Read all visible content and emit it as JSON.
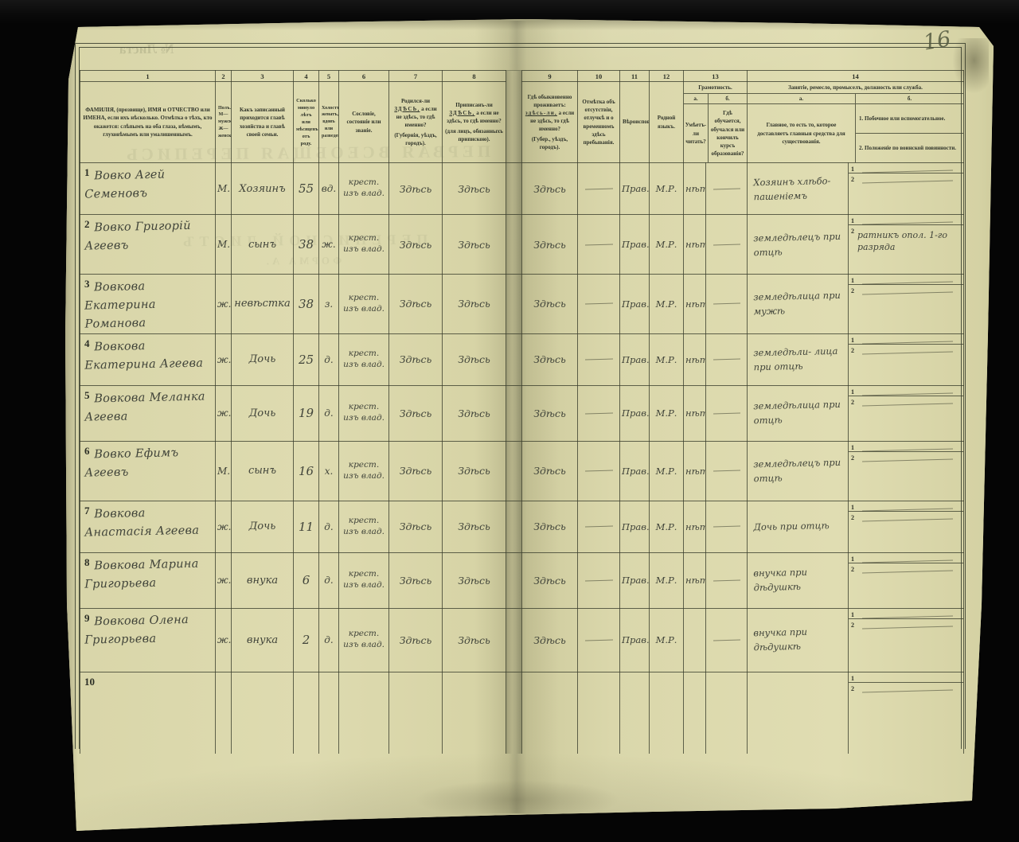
{
  "page": {
    "number": "16"
  },
  "colors": {
    "paper": "#d8d5a7",
    "ink": "#41443a",
    "print": "#30342a",
    "background": "#050505",
    "grid_line": "#383c2c"
  },
  "ghost_texts": {
    "sheet_no": "№ Листа",
    "title": "ПЕРВАЯ ВСЕОБЩАЯ ПЕРЕПИСЬ",
    "subtitle": "ПЕРЕПИСНОЙ ЛИСТЪ",
    "form": "ФОРМА А."
  },
  "table": {
    "column_numbers": [
      "1",
      "2",
      "3",
      "4",
      "5",
      "6",
      "7",
      "8",
      "9",
      "10",
      "11",
      "12",
      "13",
      "14"
    ],
    "headers": {
      "col1": "ФАМИЛІЯ, (прозвище), ИМЯ и ОТЧЕСТВО или ИМЕНА, если ихъ нѣсколько. Отмѣтка о тѣхъ, кто окажется: слѣпымъ на оба глаза, нѣмымъ, глухонѣмымъ или умалишеннымъ.",
      "col2": "Полъ. М—мужской. Ж—женскій.",
      "col3": "Какъ записанный приходится главѣ хозяйства и главѣ своей семьи.",
      "col4": "Сколько минуло лѣтъ или мѣсяцевъ отъ роду.",
      "col5": "Холостъ, женатъ, вдовъ или разведенъ.",
      "col6": "Сословіе, состояніе или званіе.",
      "col7": {
        "pre": "Родился-ли",
        "emph": "ЗДѢСЬ,",
        "post": "а если не здѣсь, то гдѣ именно?",
        "note": "(Губернія, уѣздъ, городъ)."
      },
      "col8": {
        "pre": "Приписанъ-ли",
        "emph": "ЗДѢСЬ,",
        "post": "а если не здѣсь, то гдѣ именно?",
        "note": "(для лицъ, обязанныхъ припискою)."
      },
      "col9": {
        "pre": "Гдѣ обыкновенно проживаетъ:",
        "emph": "здѣсь-ли,",
        "post": "а если не здѣсь, то гдѣ именно?",
        "note": "(Губер., уѣздъ, городъ)."
      },
      "col10": "Отмѣтка объ отсутствіи, отлучкѣ и о временномъ здѣсь пребыванія.",
      "col11": "Вѣроисповѣданіе.",
      "col12": "Родной языкъ.",
      "col13": {
        "title": "Грамотность.",
        "a_label": "а.",
        "b_label": "б.",
        "a": "Умѣетъ-ли читать?",
        "b": "Гдѣ обучается, обучался или кончилъ курсъ образованія?"
      },
      "col14": {
        "title": "Занятіе, ремесло, промыселъ, должность или служба.",
        "a_label": "а.",
        "b_label": "б.",
        "a": "Главное, то есть то, которое доставляетъ главныя средства для существованія.",
        "b1": "1. Побочное или вспомогательное.",
        "b2": "2. Положеніе по воинской повинности."
      }
    },
    "side_labels": [
      "1",
      "2"
    ],
    "rows": [
      {
        "num": "1",
        "name": "Вовко Агей Семеновъ",
        "sex": "М.",
        "relation": "Хозяинъ",
        "age": "55",
        "marital": "вд.",
        "estate": "крест. изъ влад.",
        "born": "Здѣсь",
        "registered": "Здѣсь",
        "lives": "Здѣсь",
        "absence": "—",
        "religion": "Прав.",
        "language": "М.Р.",
        "read": "нѣтъ",
        "edu": "—",
        "occupation": "Хозяинъ хлѣбо- пашеніемъ",
        "side1": "—",
        "side2": "—"
      },
      {
        "num": "2",
        "name": "Вовко Григорій Агеевъ",
        "sex": "М.",
        "relation": "сынъ",
        "age": "38",
        "marital": "ж.",
        "estate": "крест. изъ влад.",
        "born": "Здѣсь",
        "registered": "Здѣсь",
        "lives": "Здѣсь",
        "absence": "—",
        "religion": "Прав.",
        "language": "М.Р.",
        "read": "нѣтъ",
        "edu": "—",
        "occupation": "земледѣлецъ при отцѣ",
        "side1": "—",
        "side2": "ратникъ опол. 1-го разряда"
      },
      {
        "num": "3",
        "name": "Вовкова Екатерина Романова",
        "sex": "ж.",
        "relation": "невѣстка",
        "age": "38",
        "marital": "з.",
        "estate": "крест. изъ влад.",
        "born": "Здѣсь",
        "registered": "Здѣсь",
        "lives": "Здѣсь",
        "absence": "—",
        "religion": "Прав.",
        "language": "М.Р.",
        "read": "нѣтъ",
        "edu": "—",
        "occupation": "земледѣлица при мужѣ",
        "side1": "—",
        "side2": "—"
      },
      {
        "num": "4",
        "name": "Вовкова Екатерина Агеева",
        "sex": "ж.",
        "relation": "Дочь",
        "age": "25",
        "marital": "д.",
        "estate": "крест. изъ влад.",
        "born": "Здѣсь",
        "registered": "Здѣсь",
        "lives": "Здѣсь",
        "absence": "—",
        "religion": "Прав.",
        "language": "М.Р.",
        "read": "нѣтъ",
        "edu": "—",
        "occupation": "земледѣли- лица при отцѣ",
        "side1": "—",
        "side2": "—"
      },
      {
        "num": "5",
        "name": "Вовкова Меланка Агеева",
        "sex": "ж.",
        "relation": "Дочь",
        "age": "19",
        "marital": "д.",
        "estate": "крест. изъ влад.",
        "born": "Здѣсь",
        "registered": "Здѣсь",
        "lives": "Здѣсь",
        "absence": "—",
        "religion": "Прав.",
        "language": "М.Р.",
        "read": "нѣтъ",
        "edu": "—",
        "occupation": "земледѣлица при отцѣ",
        "side1": "—",
        "side2": "—"
      },
      {
        "num": "6",
        "name": "Вовко Ефимъ Агеевъ",
        "sex": "М.",
        "relation": "сынъ",
        "age": "16",
        "marital": "х.",
        "estate": "крест. изъ влад.",
        "born": "Здѣсь",
        "registered": "Здѣсь",
        "lives": "Здѣсь",
        "absence": "—",
        "religion": "Прав.",
        "language": "М.Р.",
        "read": "нѣтъ",
        "edu": "—",
        "occupation": "земледѣлецъ при отцѣ",
        "side1": "—",
        "side2": "—"
      },
      {
        "num": "7",
        "name": "Вовкова Анастасія Агеева",
        "sex": "ж.",
        "relation": "Дочь",
        "age": "11",
        "marital": "д.",
        "estate": "крест. изъ влад.",
        "born": "Здѣсь",
        "registered": "Здѣсь",
        "lives": "Здѣсь",
        "absence": "—",
        "religion": "Прав.",
        "language": "М.Р.",
        "read": "нѣтъ",
        "edu": "—",
        "occupation": "Дочь при отцѣ",
        "side1": "—",
        "side2": "—"
      },
      {
        "num": "8",
        "name": "Вовкова Марина Григорьева",
        "sex": "ж.",
        "relation": "внука",
        "age": "6",
        "marital": "д.",
        "estate": "крест. изъ влад.",
        "born": "Здѣсь",
        "registered": "Здѣсь",
        "lives": "Здѣсь",
        "absence": "—",
        "religion": "Прав.",
        "language": "М.Р.",
        "read": "нѣтъ",
        "edu": "—",
        "occupation": "внучка при дѣдушкѣ",
        "side1": "—",
        "side2": "—"
      },
      {
        "num": "9",
        "name": "Вовкова Олена Григорьева",
        "sex": "ж.",
        "relation": "внука",
        "age": "2",
        "marital": "д.",
        "estate": "крест. изъ влад.",
        "born": "Здѣсь",
        "registered": "Здѣсь",
        "lives": "Здѣсь",
        "absence": "—",
        "religion": "Прав.",
        "language": "М.Р.",
        "read": "",
        "edu": "—",
        "occupation": "внучка при дѣдушкѣ",
        "side1": "—",
        "side2": "—"
      },
      {
        "num": "10",
        "name": "",
        "sex": "",
        "relation": "",
        "age": "",
        "marital": "",
        "estate": "",
        "born": "",
        "registered": "",
        "lives": "",
        "absence": "",
        "religion": "",
        "language": "",
        "read": "",
        "edu": "",
        "occupation": "",
        "side1": "",
        "side2": "—"
      }
    ]
  }
}
